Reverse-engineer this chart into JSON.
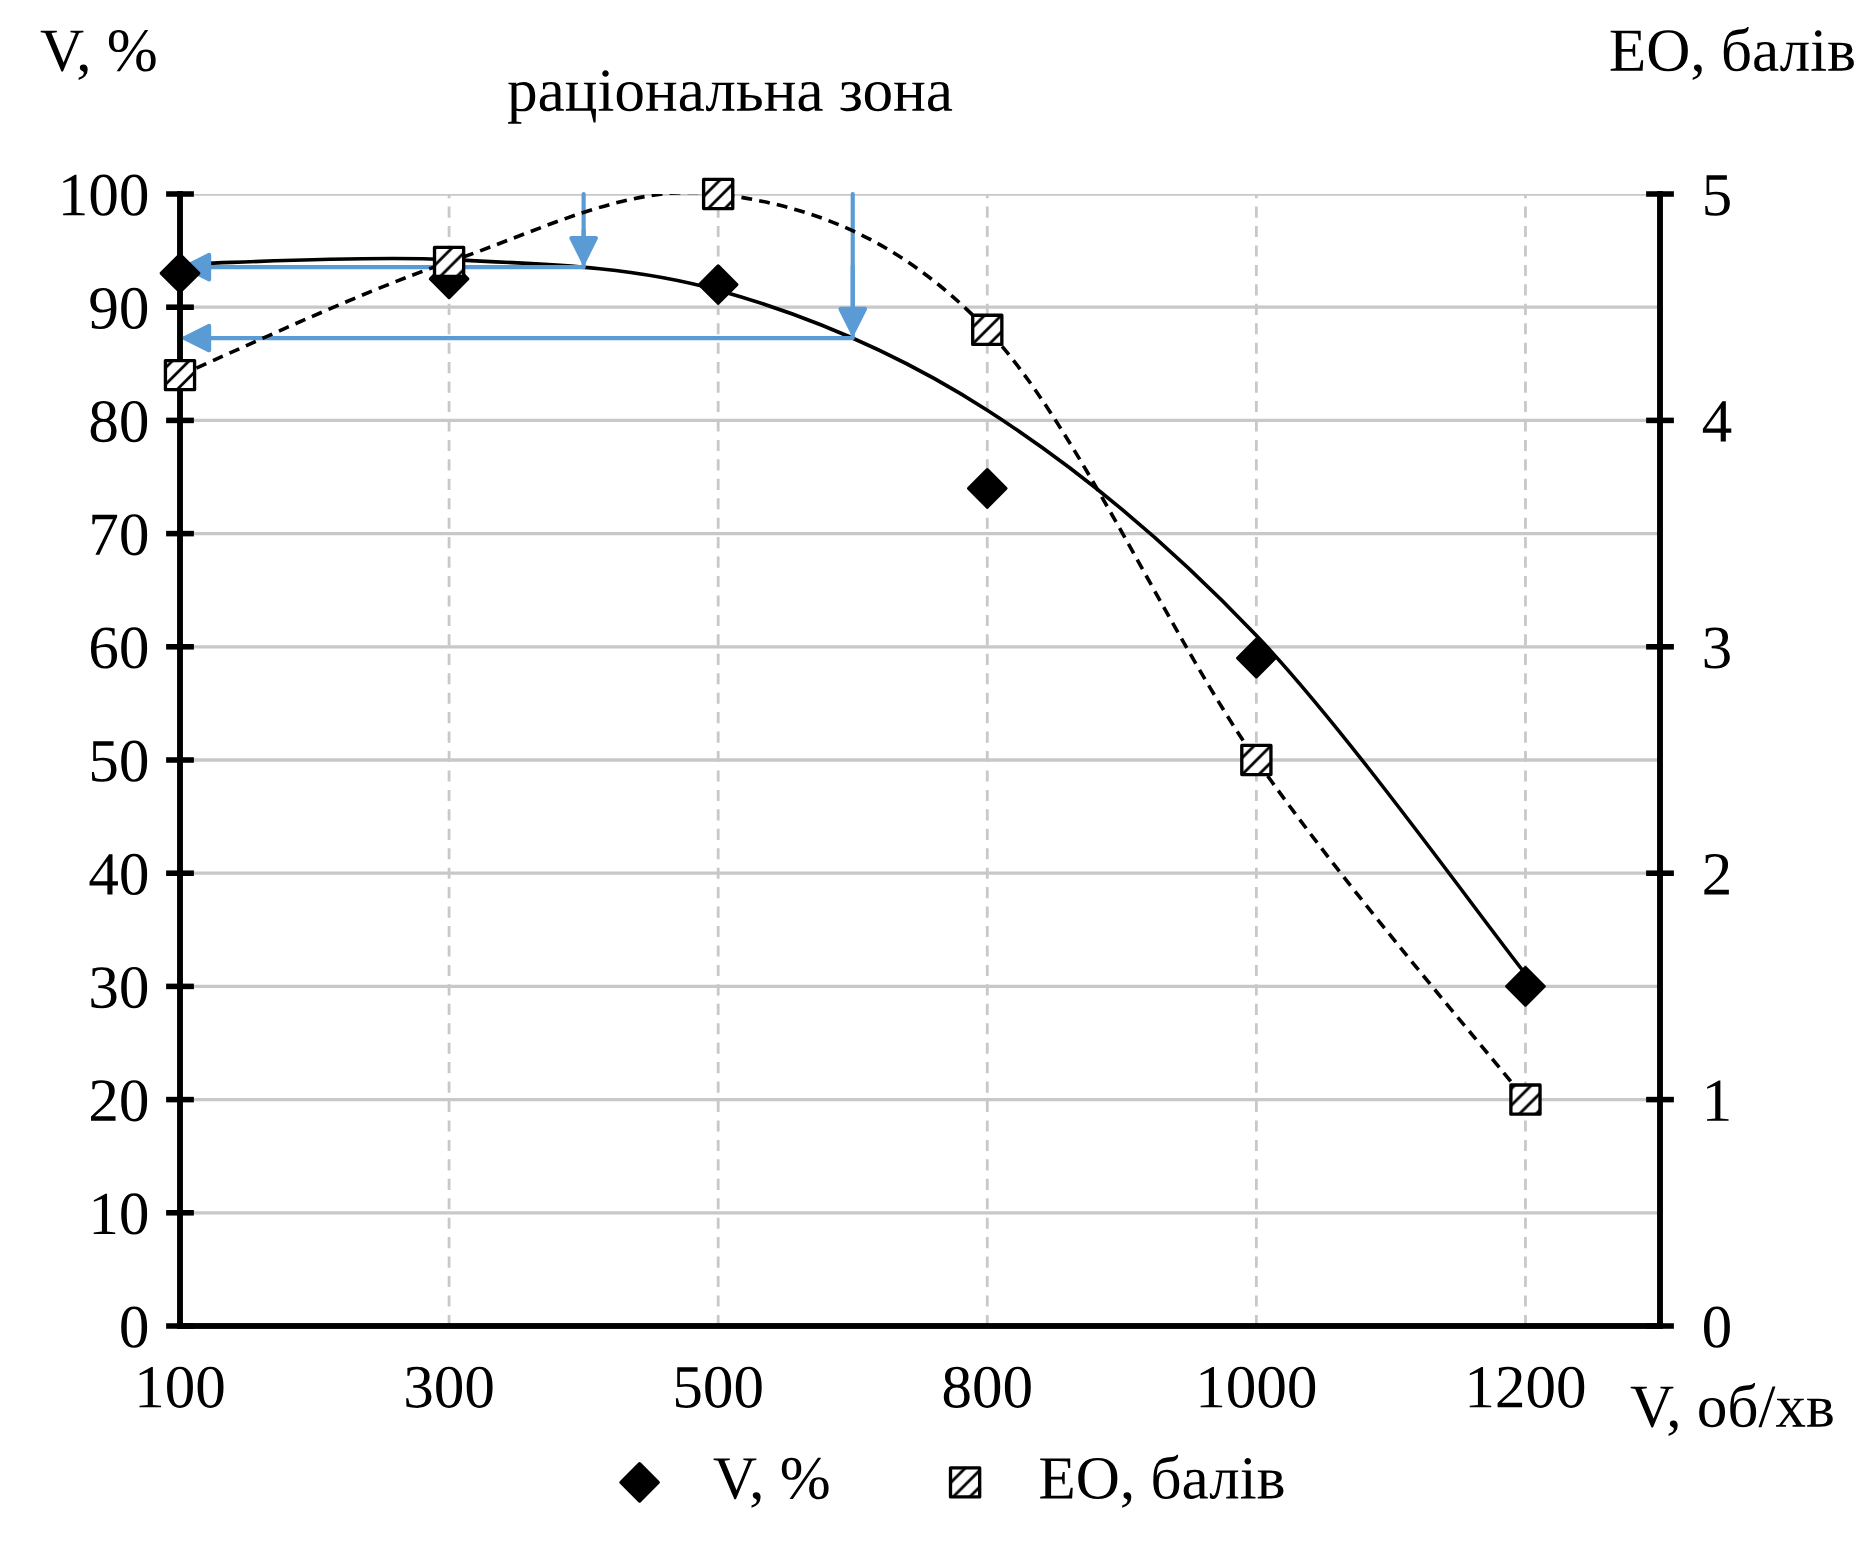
{
  "chart_data": {
    "type": "line",
    "title": "раціональна зона",
    "ylabel": "V, %",
    "y2label": "ЕО, балів",
    "xlabel": "V, об/хв",
    "categories": [
      "100",
      "300",
      "500",
      "800",
      "1000",
      "1200"
    ],
    "ylim": [
      0,
      100
    ],
    "yticks": [
      0,
      10,
      20,
      30,
      40,
      50,
      60,
      70,
      80,
      90,
      100
    ],
    "y2lim": [
      0,
      5
    ],
    "y2ticks": [
      0,
      1,
      2,
      3,
      4,
      5
    ],
    "grid": true,
    "legend": "bottom",
    "series": [
      {
        "name": "V, %",
        "type": "scatter",
        "marker": "diamond",
        "color": "#000000",
        "values": [
          93,
          92.5,
          92,
          74,
          59,
          30
        ]
      },
      {
        "name": "ЕО, балів",
        "marker": "square",
        "line_style": "dashed",
        "color": "#000000",
        "axis": "y2",
        "values": [
          4.2,
          4.7,
          5,
          4.4,
          2.5,
          1
        ]
      },
      {
        "marker": "none",
        "line_style": "solid",
        "color": "#000000",
        "values": [
          93.8,
          94.2,
          91.5,
          80.9,
          61,
          31.1
        ]
      }
    ]
  }
}
